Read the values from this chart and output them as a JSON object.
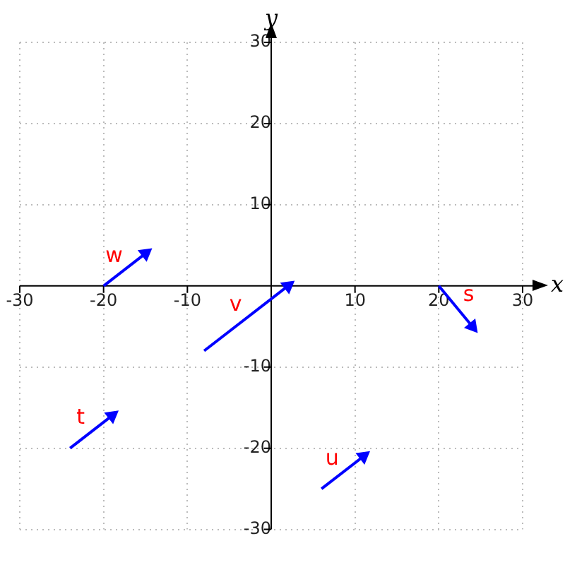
{
  "chart_data": {
    "type": "line",
    "xlabel": "x",
    "ylabel": "y",
    "xlim": [
      -30,
      30
    ],
    "ylim": [
      -30,
      30
    ],
    "xticks": [
      -30,
      -20,
      -10,
      10,
      20,
      30
    ],
    "yticks": [
      -30,
      -20,
      -10,
      10,
      20,
      30
    ],
    "grid": true,
    "line_style": "solid",
    "series": [
      {
        "name": "s",
        "color": "#0000ff",
        "x": [
          20,
          24
        ],
        "values": [
          0,
          -5
        ]
      },
      {
        "name": "t",
        "color": "#0000ff",
        "x": [
          -24,
          -19
        ],
        "values": [
          -20,
          -16
        ]
      },
      {
        "name": "u",
        "color": "#0000ff",
        "x": [
          6,
          11
        ],
        "values": [
          -25,
          -21
        ]
      },
      {
        "name": "v",
        "color": "#0000ff",
        "x": [
          -8,
          2
        ],
        "values": [
          -8,
          0
        ]
      },
      {
        "name": "w",
        "color": "#0000ff",
        "x": [
          -20,
          -15
        ],
        "values": [
          0,
          4
        ]
      }
    ]
  }
}
